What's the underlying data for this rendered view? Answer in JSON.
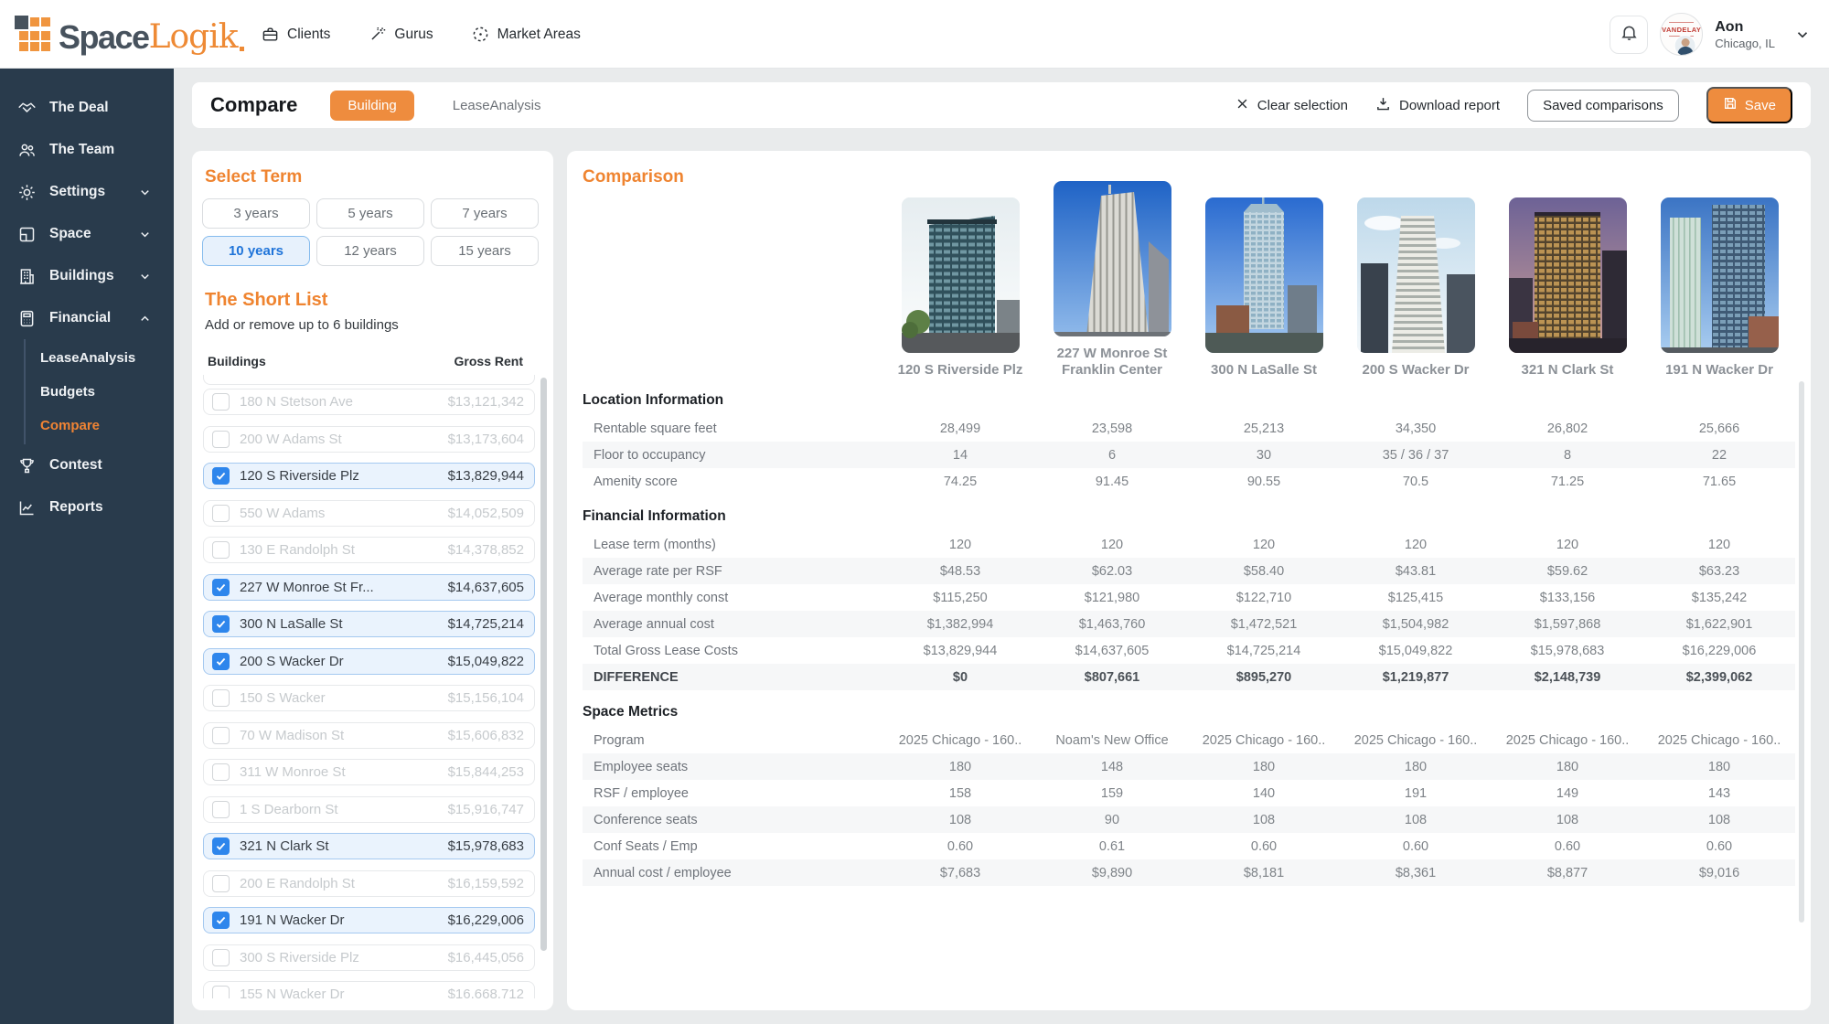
{
  "colors": {
    "accent_orange": "#ee8c3e",
    "heading_orange": "#ef8430",
    "sidebar_navy": "#293b4c",
    "selected_blue": "#1f74d9",
    "checkbox_blue": "#2e86ec"
  },
  "header": {
    "logo": {
      "space": "Space",
      "logik": "Logik"
    },
    "nav": [
      {
        "label": "Clients",
        "icon": "briefcase-icon"
      },
      {
        "label": "Gurus",
        "icon": "wand-icon"
      },
      {
        "label": "Market Areas",
        "icon": "target-icon"
      }
    ],
    "user": {
      "name": "Aon",
      "location": "Chicago, IL",
      "avatar_text": "VANDELAY"
    }
  },
  "sidebar": {
    "items": [
      {
        "label": "The Deal",
        "icon": "handshake-icon"
      },
      {
        "label": "The Team",
        "icon": "team-icon"
      },
      {
        "label": "Settings",
        "icon": "gear-icon",
        "chevron": "down"
      },
      {
        "label": "Space",
        "icon": "space-icon",
        "chevron": "down"
      },
      {
        "label": "Buildings",
        "icon": "buildings-icon",
        "chevron": "down"
      },
      {
        "label": "Financial",
        "icon": "calculator-icon",
        "chevron": "up"
      }
    ],
    "financial_children": [
      "LeaseAnalysis",
      "Budgets",
      "Compare"
    ],
    "active_child": "Compare",
    "items_bottom": [
      {
        "label": "Contest",
        "icon": "trophy-icon"
      },
      {
        "label": "Reports",
        "icon": "chart-icon"
      }
    ]
  },
  "toolbar": {
    "title": "Compare",
    "tabs": [
      {
        "label": "Building",
        "active": true
      },
      {
        "label": "LeaseAnalysis",
        "active": false
      }
    ],
    "actions": {
      "clear": "Clear selection",
      "download": "Download report",
      "saved": "Saved comparisons",
      "save": "Save"
    }
  },
  "term": {
    "title": "Select Term",
    "options": [
      "3 years",
      "5 years",
      "7 years",
      "10 years",
      "12 years",
      "15 years"
    ],
    "selected": "10 years"
  },
  "shortlist": {
    "title": "The Short List",
    "subtitle": "Add or remove up to 6 buildings",
    "col_buildings": "Buildings",
    "col_rent": "Gross Rent",
    "rows": [
      {
        "name": "180 N Stetson Ave",
        "rent": "$13,121,342",
        "checked": false
      },
      {
        "name": "200 W Adams St",
        "rent": "$13,173,604",
        "checked": false
      },
      {
        "name": "120 S Riverside Plz",
        "rent": "$13,829,944",
        "checked": true
      },
      {
        "name": "550 W Adams",
        "rent": "$14,052,509",
        "checked": false
      },
      {
        "name": "130 E Randolph St",
        "rent": "$14,378,852",
        "checked": false
      },
      {
        "name": "227 W Monroe St Fr...",
        "rent": "$14,637,605",
        "checked": true
      },
      {
        "name": "300 N LaSalle St",
        "rent": "$14,725,214",
        "checked": true
      },
      {
        "name": "200 S Wacker Dr",
        "rent": "$15,049,822",
        "checked": true
      },
      {
        "name": "150 S Wacker",
        "rent": "$15,156,104",
        "checked": false
      },
      {
        "name": "70 W Madison St",
        "rent": "$15,606,832",
        "checked": false
      },
      {
        "name": "311 W Monroe St",
        "rent": "$15,844,253",
        "checked": false
      },
      {
        "name": "1 S Dearborn St",
        "rent": "$15,916,747",
        "checked": false
      },
      {
        "name": "321 N Clark St",
        "rent": "$15,978,683",
        "checked": true
      },
      {
        "name": "200 E Randolph St",
        "rent": "$16,159,592",
        "checked": false
      },
      {
        "name": "191 N Wacker Dr",
        "rent": "$16,229,006",
        "checked": true
      },
      {
        "name": "300 S Riverside Plz",
        "rent": "$16,445,056",
        "checked": false
      },
      {
        "name": "155 N Wacker Dr",
        "rent": "$16,668,712",
        "checked": false
      }
    ]
  },
  "comparison": {
    "title": "Comparison",
    "buildings": [
      "120 S Riverside Plz",
      "227 W Monroe St Franklin Center",
      "300 N LaSalle St",
      "200 S Wacker Dr",
      "321 N Clark St",
      "191 N Wacker Dr"
    ],
    "sections": [
      {
        "title": "Location Information",
        "rows": [
          {
            "label": "Rentable square feet",
            "values": [
              "28,499",
              "23,598",
              "25,213",
              "34,350",
              "26,802",
              "25,666"
            ]
          },
          {
            "label": "Floor to occupancy",
            "values": [
              "14",
              "6",
              "30",
              "35 / 36 / 37",
              "8",
              "22"
            ]
          },
          {
            "label": "Amenity score",
            "values": [
              "74.25",
              "91.45",
              "90.55",
              "70.5",
              "71.25",
              "71.65"
            ]
          }
        ]
      },
      {
        "title": "Financial Information",
        "rows": [
          {
            "label": "Lease term (months)",
            "values": [
              "120",
              "120",
              "120",
              "120",
              "120",
              "120"
            ]
          },
          {
            "label": "Average rate per RSF",
            "values": [
              "$48.53",
              "$62.03",
              "$58.40",
              "$43.81",
              "$59.62",
              "$63.23"
            ]
          },
          {
            "label": "Average monthly const",
            "values": [
              "$115,250",
              "$121,980",
              "$122,710",
              "$125,415",
              "$133,156",
              "$135,242"
            ]
          },
          {
            "label": "Average annual cost",
            "values": [
              "$1,382,994",
              "$1,463,760",
              "$1,472,521",
              "$1,504,982",
              "$1,597,868",
              "$1,622,901"
            ]
          },
          {
            "label": "Total Gross Lease Costs",
            "values": [
              "$13,829,944",
              "$14,637,605",
              "$14,725,214",
              "$15,049,822",
              "$15,978,683",
              "$16,229,006"
            ]
          },
          {
            "label": "DIFFERENCE",
            "values": [
              "$0",
              "$807,661",
              "$895,270",
              "$1,219,877",
              "$2,148,739",
              "$2,399,062"
            ],
            "bold": true
          }
        ]
      },
      {
        "title": "Space Metrics",
        "rows": [
          {
            "label": "Program",
            "values": [
              "2025 Chicago - 160..",
              "Noam's New Office",
              "2025 Chicago - 160..",
              "2025 Chicago - 160..",
              "2025 Chicago - 160..",
              "2025 Chicago - 160.."
            ]
          },
          {
            "label": "Employee seats",
            "values": [
              "180",
              "148",
              "180",
              "180",
              "180",
              "180"
            ]
          },
          {
            "label": "RSF / employee",
            "values": [
              "158",
              "159",
              "140",
              "191",
              "149",
              "143"
            ]
          },
          {
            "label": "Conference seats",
            "values": [
              "108",
              "90",
              "108",
              "108",
              "108",
              "108"
            ]
          },
          {
            "label": "Conf Seats / Emp",
            "values": [
              "0.60",
              "0.61",
              "0.60",
              "0.60",
              "0.60",
              "0.60"
            ]
          },
          {
            "label": "Annual cost / employee",
            "values": [
              "$7,683",
              "$9,890",
              "$8,181",
              "$8,361",
              "$8,877",
              "$9,016"
            ]
          }
        ]
      }
    ]
  }
}
